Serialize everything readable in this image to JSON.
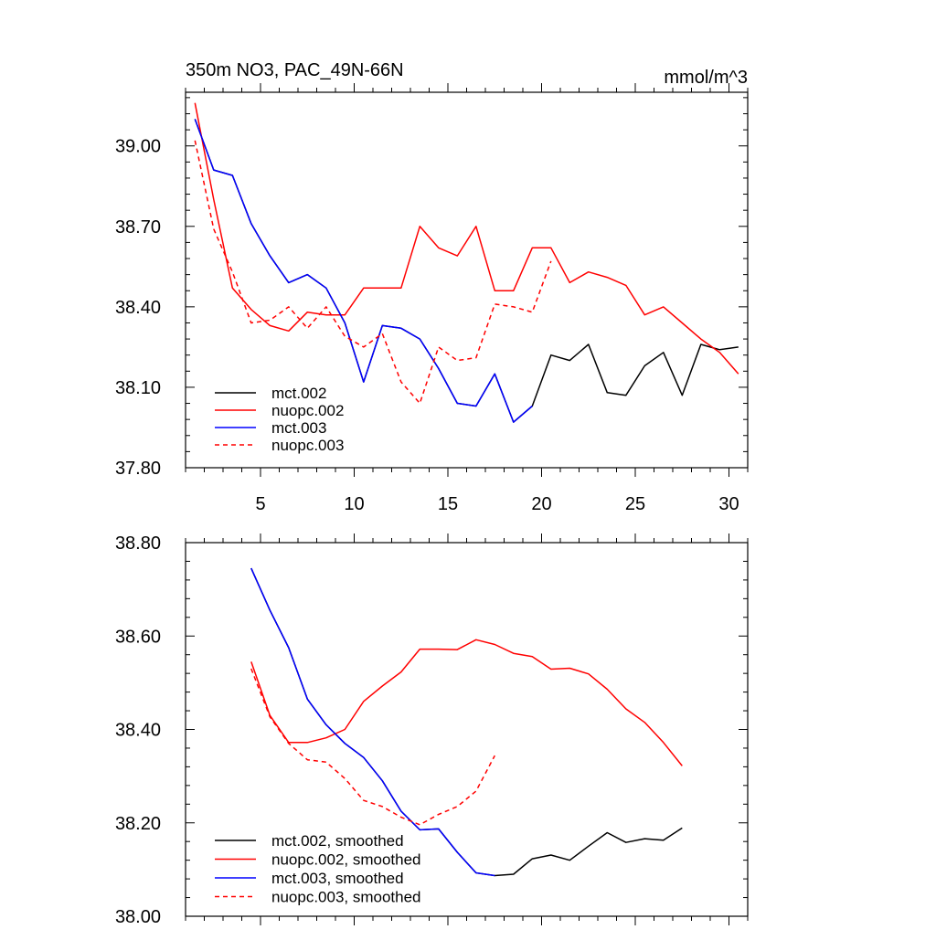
{
  "chart_data": [
    {
      "type": "line",
      "title": "350m NO3, PAC_49N-66N",
      "units": "mmol/m^3",
      "xlim": [
        1,
        31
      ],
      "ylim": [
        37.8,
        39.2
      ],
      "yticks": [
        "37.80",
        "38.10",
        "38.40",
        "38.70",
        "39.00"
      ],
      "xticks": [
        "5",
        "10",
        "15",
        "20",
        "25",
        "30"
      ],
      "series": [
        {
          "name": "mct.002",
          "color": "#000000",
          "dash": "solid",
          "x": [
            1.5,
            2.5,
            3.5,
            4.5,
            5.5,
            6.5,
            7.5,
            8.5,
            9.5,
            10.5,
            11.5,
            12.5,
            13.5,
            14.5,
            15.5,
            16.5,
            17.5,
            18.5,
            19.5,
            20.5,
            21.5,
            22.5,
            23.5,
            24.5,
            25.5,
            26.5,
            27.5,
            28.5,
            29.5,
            30.5
          ],
          "y": [
            39.1,
            38.91,
            38.89,
            38.71,
            38.59,
            38.49,
            38.52,
            38.47,
            38.34,
            38.12,
            38.33,
            38.32,
            38.28,
            38.17,
            38.04,
            38.03,
            38.15,
            37.97,
            38.03,
            38.22,
            38.2,
            38.26,
            38.08,
            38.07,
            38.18,
            38.23,
            38.07,
            38.26,
            38.24,
            38.25
          ]
        },
        {
          "name": "nuopc.002",
          "color": "#ff0000",
          "dash": "solid",
          "x": [
            1.5,
            2.5,
            3.5,
            4.5,
            5.5,
            6.5,
            7.5,
            8.5,
            9.5,
            10.5,
            11.5,
            12.5,
            13.5,
            14.5,
            15.5,
            16.5,
            17.5,
            18.5,
            19.5,
            20.5,
            21.5,
            22.5,
            23.5,
            24.5,
            25.5,
            26.5,
            27.5,
            28.5,
            29.5,
            30.5
          ],
          "y": [
            39.16,
            38.8,
            38.47,
            38.39,
            38.33,
            38.31,
            38.38,
            38.37,
            38.37,
            38.47,
            38.47,
            38.47,
            38.7,
            38.62,
            38.59,
            38.7,
            38.46,
            38.46,
            38.62,
            38.62,
            38.49,
            38.53,
            38.51,
            38.48,
            38.37,
            38.4,
            38.34,
            38.28,
            38.23,
            38.15
          ]
        },
        {
          "name": "mct.003",
          "color": "#0000ff",
          "dash": "solid",
          "x": [
            1.5,
            2.5,
            3.5,
            4.5,
            5.5,
            6.5,
            7.5,
            8.5,
            9.5,
            10.5,
            11.5,
            12.5,
            13.5,
            14.5,
            15.5,
            16.5,
            17.5,
            18.5,
            19.5
          ],
          "y": [
            39.1,
            38.91,
            38.89,
            38.71,
            38.59,
            38.49,
            38.52,
            38.47,
            38.34,
            38.12,
            38.33,
            38.32,
            38.28,
            38.17,
            38.04,
            38.03,
            38.15,
            37.97,
            38.03
          ]
        },
        {
          "name": "nuopc.003",
          "color": "#ff0000",
          "dash": "dashed",
          "x": [
            1.5,
            2.5,
            3.5,
            4.5,
            5.5,
            6.5,
            7.5,
            8.5,
            9.5,
            10.5,
            11.5,
            12.5,
            13.5,
            14.5,
            15.5,
            16.5,
            17.5,
            18.5,
            19.5,
            20.5
          ],
          "y": [
            39.02,
            38.69,
            38.53,
            38.34,
            38.35,
            38.4,
            38.32,
            38.4,
            38.29,
            38.25,
            38.3,
            38.12,
            38.04,
            38.25,
            38.2,
            38.21,
            38.41,
            38.4,
            38.38,
            38.57
          ]
        }
      ]
    },
    {
      "type": "line",
      "xlim": [
        1,
        31
      ],
      "ylim": [
        38.0,
        38.8
      ],
      "yticks": [
        "38.00",
        "38.20",
        "38.40",
        "38.60",
        "38.80"
      ],
      "series": [
        {
          "name": "mct.002, smoothed",
          "color": "#000000",
          "dash": "solid",
          "x": [
            4.5,
            5.5,
            6.5,
            7.5,
            8.5,
            9.5,
            10.5,
            11.5,
            12.5,
            13.5,
            14.5,
            15.5,
            16.5,
            17.5,
            18.5,
            19.5,
            20.5,
            21.5,
            22.5,
            23.5,
            24.5,
            25.5,
            26.5,
            27.5
          ],
          "y": [
            38.745,
            38.655,
            38.575,
            38.465,
            38.41,
            38.37,
            38.34,
            38.29,
            38.225,
            38.185,
            38.187,
            38.137,
            38.093,
            38.087,
            38.09,
            38.123,
            38.131,
            38.12,
            38.15,
            38.179,
            38.158,
            38.166,
            38.163,
            38.189
          ]
        },
        {
          "name": "nuopc.002, smoothed",
          "color": "#ff0000",
          "dash": "solid",
          "x": [
            4.5,
            5.5,
            6.5,
            7.5,
            8.5,
            9.5,
            10.5,
            11.5,
            12.5,
            13.5,
            14.5,
            15.5,
            16.5,
            17.5,
            18.5,
            19.5,
            20.5,
            21.5,
            22.5,
            23.5,
            24.5,
            25.5,
            26.5,
            27.5
          ],
          "y": [
            38.545,
            38.43,
            38.372,
            38.372,
            38.382,
            38.4,
            38.46,
            38.493,
            38.523,
            38.572,
            38.572,
            38.571,
            38.592,
            38.582,
            38.563,
            38.556,
            38.529,
            38.531,
            38.519,
            38.486,
            38.444,
            38.415,
            38.372,
            38.322
          ]
        },
        {
          "name": "mct.003, smoothed",
          "color": "#0000ff",
          "dash": "solid",
          "x": [
            4.5,
            5.5,
            6.5,
            7.5,
            8.5,
            9.5,
            10.5,
            11.5,
            12.5,
            13.5,
            14.5,
            15.5,
            16.5,
            17.5
          ],
          "y": [
            38.745,
            38.655,
            38.575,
            38.465,
            38.41,
            38.37,
            38.34,
            38.29,
            38.225,
            38.185,
            38.187,
            38.137,
            38.093,
            38.087
          ]
        },
        {
          "name": "nuopc.003, smoothed",
          "color": "#ff0000",
          "dash": "dashed",
          "x": [
            4.5,
            5.5,
            6.5,
            7.5,
            8.5,
            9.5,
            10.5,
            11.5,
            12.5,
            13.5,
            14.5,
            15.5,
            16.5,
            17.5
          ],
          "y": [
            38.53,
            38.427,
            38.37,
            38.335,
            38.33,
            38.295,
            38.248,
            38.235,
            38.212,
            38.196,
            38.218,
            38.235,
            38.268,
            38.344
          ]
        }
      ]
    }
  ]
}
